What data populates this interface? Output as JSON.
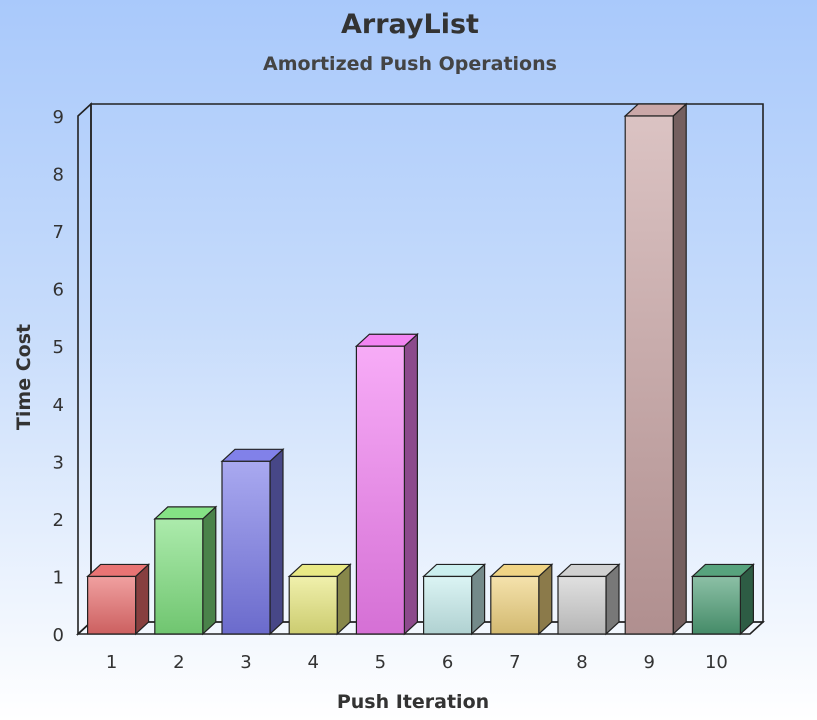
{
  "chart_data": {
    "type": "bar",
    "title": "ArrayList",
    "subtitle": "Amortized Push Operations",
    "xlabel": "Push Iteration",
    "ylabel": "Time Cost",
    "categories": [
      "1",
      "2",
      "3",
      "4",
      "5",
      "6",
      "7",
      "8",
      "9",
      "10"
    ],
    "values": [
      1,
      2,
      3,
      1,
      5,
      1,
      1,
      1,
      9,
      1
    ],
    "ylim": [
      0,
      9
    ],
    "yticks": [
      "0",
      "1",
      "2",
      "3",
      "4",
      "5",
      "6",
      "7",
      "8",
      "9"
    ],
    "grid": false,
    "legend": "none",
    "three_d": true,
    "colors": [
      "#e86d6d",
      "#7fe07f",
      "#7a7ae8",
      "#e8e87f",
      "#f27ff2",
      "#c8eeee",
      "#efd27f",
      "#cfcfcf",
      "#c8a3a3",
      "#4e9e76"
    ]
  }
}
